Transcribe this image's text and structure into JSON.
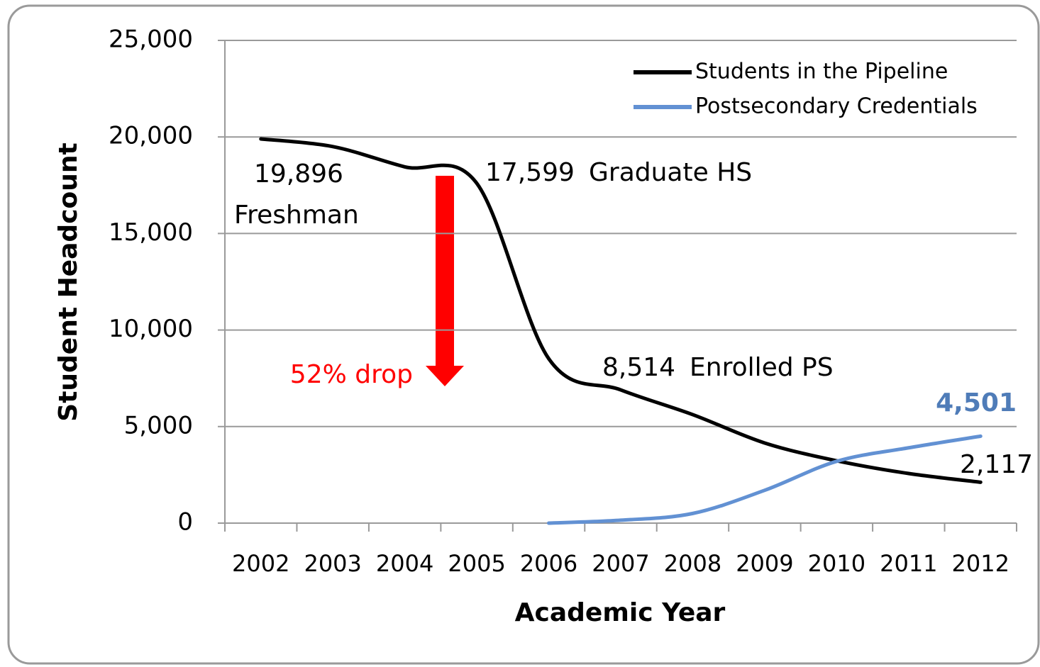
{
  "chart_data": {
    "type": "line",
    "categories": [
      "2002",
      "2003",
      "2004",
      "2005",
      "2006",
      "2007",
      "2008",
      "2009",
      "2010",
      "2011",
      "2012"
    ],
    "series": [
      {
        "name": "Students in the Pipeline",
        "color": "#000000",
        "values": [
          19896,
          19500,
          18450,
          17599,
          8514,
          6900,
          5620,
          4150,
          3230,
          2570,
          2117
        ],
        "value_labels": [
          "19,896",
          null,
          null,
          "17,599",
          "8,514",
          null,
          null,
          null,
          null,
          null,
          "2,117"
        ]
      },
      {
        "name": "Postsecondary Credentials",
        "color": "#6291d3",
        "values": [
          null,
          null,
          null,
          null,
          0,
          150,
          500,
          1700,
          3200,
          3900,
          4501
        ],
        "value_labels": [
          null,
          null,
          null,
          null,
          null,
          null,
          null,
          null,
          null,
          null,
          "4,501"
        ]
      }
    ],
    "annotations": [
      "Freshman",
      "Graduate HS",
      "Enrolled PS",
      "52% drop"
    ],
    "xlabel": "Academic Year",
    "ylabel": "Student Headcount",
    "ylim": [
      0,
      25000
    ],
    "yticks": [
      {
        "value": 0,
        "label": "0"
      },
      {
        "value": 5000,
        "label": "5,000"
      },
      {
        "value": 10000,
        "label": "10,000"
      },
      {
        "value": 15000,
        "label": "15,000"
      },
      {
        "value": 20000,
        "label": "20,000"
      },
      {
        "value": 25000,
        "label": "25,000"
      }
    ],
    "grid": true,
    "legend": "top-right"
  }
}
